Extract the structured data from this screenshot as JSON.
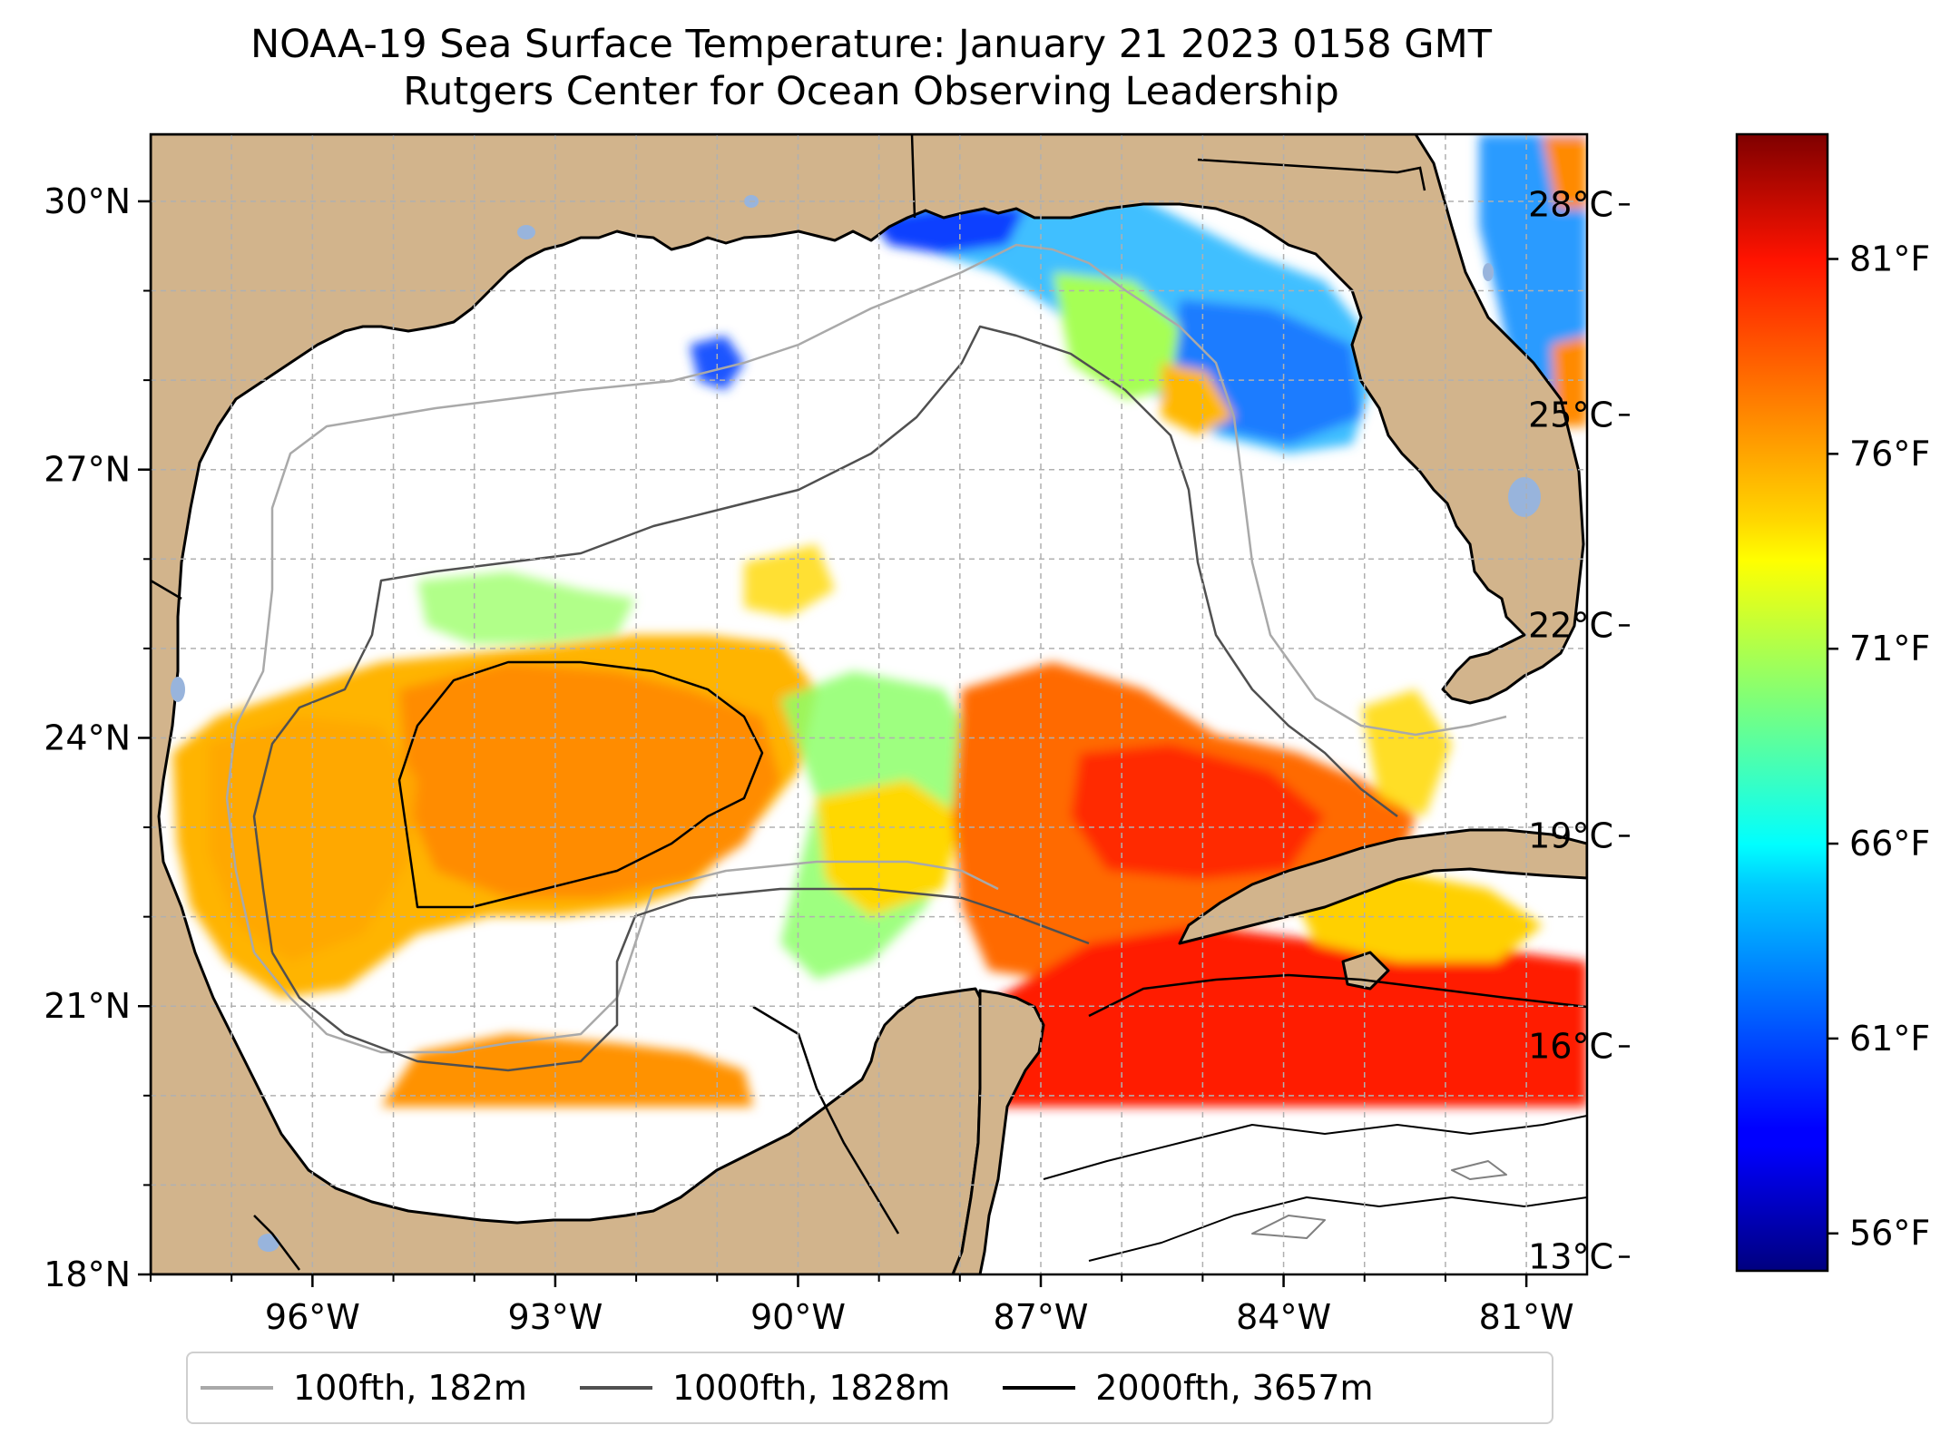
{
  "title": "NOAA-19 Sea Surface Temperature: January 21 2023 0158 GMT",
  "subtitle": "Rutgers Center for Ocean Observing Leadership",
  "map": {
    "lon_range": [
      -98,
      -80.25
    ],
    "lat_range": [
      18,
      30.75
    ],
    "lat_ticks": [
      {
        "value": 30,
        "label": "30°N"
      },
      {
        "value": 27,
        "label": "27°N"
      },
      {
        "value": 24,
        "label": "24°N"
      },
      {
        "value": 21,
        "label": "21°N"
      },
      {
        "value": 18,
        "label": "18°N"
      }
    ],
    "lon_ticks": [
      {
        "value": -96,
        "label": "96°W"
      },
      {
        "value": -93,
        "label": "93°W"
      },
      {
        "value": -90,
        "label": "90°W"
      },
      {
        "value": -87,
        "label": "87°W"
      },
      {
        "value": -84,
        "label": "84°W"
      },
      {
        "value": -81,
        "label": "81°W"
      }
    ],
    "gridlines": true,
    "colors": {
      "land": "#d2b48c",
      "ocean_no_data": "#ffffff",
      "lakes": "#98b4dc",
      "coastline": "#000000",
      "grid": "#b0b0b0"
    }
  },
  "colorbar": {
    "colormap": "jet",
    "celsius_range": [
      12.8,
      29.0
    ],
    "celsius_ticks": [
      {
        "value": 28,
        "label": "28°C"
      },
      {
        "value": 25,
        "label": "25°C"
      },
      {
        "value": 22,
        "label": "22°C"
      },
      {
        "value": 19,
        "label": "19°C"
      },
      {
        "value": 16,
        "label": "16°C"
      },
      {
        "value": 13,
        "label": "13°C"
      }
    ],
    "fahrenheit_ticks": [
      {
        "value": 81,
        "label": "81°F"
      },
      {
        "value": 76,
        "label": "76°F"
      },
      {
        "value": 71,
        "label": "71°F"
      },
      {
        "value": 66,
        "label": "66°F"
      },
      {
        "value": 61,
        "label": "61°F"
      },
      {
        "value": 56,
        "label": "56°F"
      }
    ]
  },
  "legend": {
    "placement": "bottom-center",
    "entries": [
      {
        "label": "100fth, 182m",
        "color": "#a9a9a9"
      },
      {
        "label": "1000fth, 1828m",
        "color": "#505050"
      },
      {
        "label": "2000fth, 3657m",
        "color": "#000000"
      }
    ]
  }
}
